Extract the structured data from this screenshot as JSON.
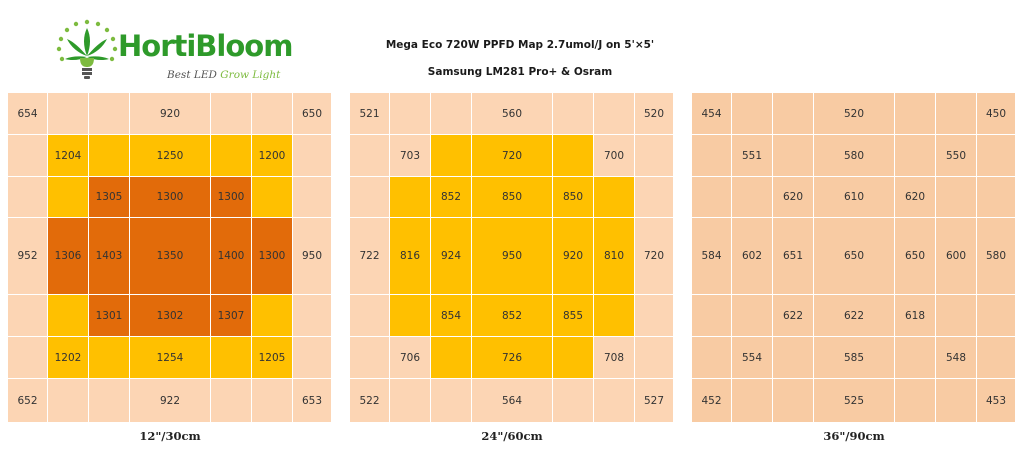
{
  "brand": {
    "name": "HortiBloom",
    "tagline_part1": "Best LED",
    "tagline_part2": "Grow Light",
    "logo_icon": "cannabis-leaf-bulb-icon",
    "name_color": "#2e9a2a",
    "accent_color": "#7dbb3f"
  },
  "title": {
    "line1": "Mega Eco 720W PPFD Map 2.7umol/J on 5'×5'",
    "line2": "Samsung LM281 Pro+ & Osram"
  },
  "colors": {
    "low": "#fcd5b4",
    "mid": "#f8cba3",
    "high": "#ffc000",
    "peak": "#e26b0a"
  },
  "chart_data": [
    {
      "type": "heatmap",
      "caption": "12\"/30cm",
      "grid": [
        [
          {
            "v": "654",
            "c": "low"
          },
          {
            "v": "",
            "c": "low"
          },
          {
            "v": "",
            "c": "low"
          },
          {
            "v": "920",
            "c": "low"
          },
          {
            "v": "",
            "c": "low"
          },
          {
            "v": "",
            "c": "low"
          },
          {
            "v": "650",
            "c": "low"
          }
        ],
        [
          {
            "v": "",
            "c": "low"
          },
          {
            "v": "1204",
            "c": "high"
          },
          {
            "v": "",
            "c": "high"
          },
          {
            "v": "1250",
            "c": "high"
          },
          {
            "v": "",
            "c": "high"
          },
          {
            "v": "1200",
            "c": "high"
          },
          {
            "v": "",
            "c": "low"
          }
        ],
        [
          {
            "v": "",
            "c": "low"
          },
          {
            "v": "",
            "c": "high"
          },
          {
            "v": "1305",
            "c": "peak"
          },
          {
            "v": "1300",
            "c": "peak"
          },
          {
            "v": "1300",
            "c": "peak"
          },
          {
            "v": "",
            "c": "high"
          },
          {
            "v": "",
            "c": "low"
          }
        ],
        [
          {
            "v": "952",
            "c": "low"
          },
          {
            "v": "1306",
            "c": "peak"
          },
          {
            "v": "1403",
            "c": "peak"
          },
          {
            "v": "1350",
            "c": "peak"
          },
          {
            "v": "1400",
            "c": "peak"
          },
          {
            "v": "1300",
            "c": "peak"
          },
          {
            "v": "950",
            "c": "low"
          }
        ],
        [
          {
            "v": "",
            "c": "low"
          },
          {
            "v": "",
            "c": "high"
          },
          {
            "v": "1301",
            "c": "peak"
          },
          {
            "v": "1302",
            "c": "peak"
          },
          {
            "v": "1307",
            "c": "peak"
          },
          {
            "v": "",
            "c": "high"
          },
          {
            "v": "",
            "c": "low"
          }
        ],
        [
          {
            "v": "",
            "c": "low"
          },
          {
            "v": "1202",
            "c": "high"
          },
          {
            "v": "",
            "c": "high"
          },
          {
            "v": "1254",
            "c": "high"
          },
          {
            "v": "",
            "c": "high"
          },
          {
            "v": "1205",
            "c": "high"
          },
          {
            "v": "",
            "c": "low"
          }
        ],
        [
          {
            "v": "652",
            "c": "low"
          },
          {
            "v": "",
            "c": "low"
          },
          {
            "v": "",
            "c": "low"
          },
          {
            "v": "922",
            "c": "low"
          },
          {
            "v": "",
            "c": "low"
          },
          {
            "v": "",
            "c": "low"
          },
          {
            "v": "653",
            "c": "low"
          }
        ]
      ]
    },
    {
      "type": "heatmap",
      "caption": "24\"/60cm",
      "grid": [
        [
          {
            "v": "521",
            "c": "low"
          },
          {
            "v": "",
            "c": "low"
          },
          {
            "v": "",
            "c": "low"
          },
          {
            "v": "560",
            "c": "low"
          },
          {
            "v": "",
            "c": "low"
          },
          {
            "v": "",
            "c": "low"
          },
          {
            "v": "520",
            "c": "low"
          }
        ],
        [
          {
            "v": "",
            "c": "low"
          },
          {
            "v": "703",
            "c": "low"
          },
          {
            "v": "",
            "c": "high"
          },
          {
            "v": "720",
            "c": "high"
          },
          {
            "v": "",
            "c": "high"
          },
          {
            "v": "700",
            "c": "low"
          },
          {
            "v": "",
            "c": "low"
          }
        ],
        [
          {
            "v": "",
            "c": "low"
          },
          {
            "v": "",
            "c": "high"
          },
          {
            "v": "852",
            "c": "high"
          },
          {
            "v": "850",
            "c": "high"
          },
          {
            "v": "850",
            "c": "high"
          },
          {
            "v": "",
            "c": "high"
          },
          {
            "v": "",
            "c": "low"
          }
        ],
        [
          {
            "v": "722",
            "c": "low"
          },
          {
            "v": "816",
            "c": "high"
          },
          {
            "v": "924",
            "c": "high"
          },
          {
            "v": "950",
            "c": "high"
          },
          {
            "v": "920",
            "c": "high"
          },
          {
            "v": "810",
            "c": "high"
          },
          {
            "v": "720",
            "c": "low"
          }
        ],
        [
          {
            "v": "",
            "c": "low"
          },
          {
            "v": "",
            "c": "high"
          },
          {
            "v": "854",
            "c": "high"
          },
          {
            "v": "852",
            "c": "high"
          },
          {
            "v": "855",
            "c": "high"
          },
          {
            "v": "",
            "c": "high"
          },
          {
            "v": "",
            "c": "low"
          }
        ],
        [
          {
            "v": "",
            "c": "low"
          },
          {
            "v": "706",
            "c": "low"
          },
          {
            "v": "",
            "c": "high"
          },
          {
            "v": "726",
            "c": "high"
          },
          {
            "v": "",
            "c": "high"
          },
          {
            "v": "708",
            "c": "low"
          },
          {
            "v": "",
            "c": "low"
          }
        ],
        [
          {
            "v": "522",
            "c": "low"
          },
          {
            "v": "",
            "c": "low"
          },
          {
            "v": "",
            "c": "low"
          },
          {
            "v": "564",
            "c": "low"
          },
          {
            "v": "",
            "c": "low"
          },
          {
            "v": "",
            "c": "low"
          },
          {
            "v": "527",
            "c": "low"
          }
        ]
      ]
    },
    {
      "type": "heatmap",
      "caption": "36\"/90cm",
      "grid": [
        [
          {
            "v": "454",
            "c": "mid"
          },
          {
            "v": "",
            "c": "mid"
          },
          {
            "v": "",
            "c": "mid"
          },
          {
            "v": "520",
            "c": "mid"
          },
          {
            "v": "",
            "c": "mid"
          },
          {
            "v": "",
            "c": "mid"
          },
          {
            "v": "450",
            "c": "mid"
          }
        ],
        [
          {
            "v": "",
            "c": "mid"
          },
          {
            "v": "551",
            "c": "mid"
          },
          {
            "v": "",
            "c": "mid"
          },
          {
            "v": "580",
            "c": "mid"
          },
          {
            "v": "",
            "c": "mid"
          },
          {
            "v": "550",
            "c": "mid"
          },
          {
            "v": "",
            "c": "mid"
          }
        ],
        [
          {
            "v": "",
            "c": "mid"
          },
          {
            "v": "",
            "c": "mid"
          },
          {
            "v": "620",
            "c": "mid"
          },
          {
            "v": "610",
            "c": "mid"
          },
          {
            "v": "620",
            "c": "mid"
          },
          {
            "v": "",
            "c": "mid"
          },
          {
            "v": "",
            "c": "mid"
          }
        ],
        [
          {
            "v": "584",
            "c": "mid"
          },
          {
            "v": "602",
            "c": "mid"
          },
          {
            "v": "651",
            "c": "mid"
          },
          {
            "v": "650",
            "c": "mid"
          },
          {
            "v": "650",
            "c": "mid"
          },
          {
            "v": "600",
            "c": "mid"
          },
          {
            "v": "580",
            "c": "mid"
          }
        ],
        [
          {
            "v": "",
            "c": "mid"
          },
          {
            "v": "",
            "c": "mid"
          },
          {
            "v": "622",
            "c": "mid"
          },
          {
            "v": "622",
            "c": "mid"
          },
          {
            "v": "618",
            "c": "mid"
          },
          {
            "v": "",
            "c": "mid"
          },
          {
            "v": "",
            "c": "mid"
          }
        ],
        [
          {
            "v": "",
            "c": "mid"
          },
          {
            "v": "554",
            "c": "mid"
          },
          {
            "v": "",
            "c": "mid"
          },
          {
            "v": "585",
            "c": "mid"
          },
          {
            "v": "",
            "c": "mid"
          },
          {
            "v": "548",
            "c": "mid"
          },
          {
            "v": "",
            "c": "mid"
          }
        ],
        [
          {
            "v": "452",
            "c": "mid"
          },
          {
            "v": "",
            "c": "mid"
          },
          {
            "v": "",
            "c": "mid"
          },
          {
            "v": "525",
            "c": "mid"
          },
          {
            "v": "",
            "c": "mid"
          },
          {
            "v": "",
            "c": "mid"
          },
          {
            "v": "453",
            "c": "mid"
          }
        ]
      ]
    }
  ]
}
